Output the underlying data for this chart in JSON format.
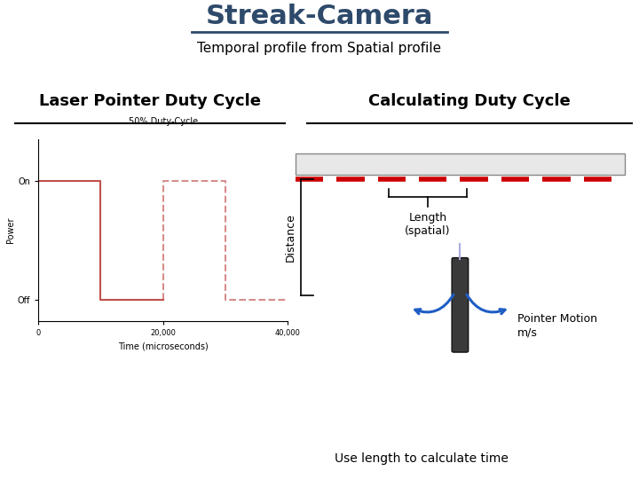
{
  "title": "Streak-Camera",
  "subtitle": "Temporal profile from Spatial profile",
  "left_section_title": "Laser Pointer Duty Cycle",
  "right_section_title": "Calculating Duty Cycle",
  "title_color": "#2E4A6B",
  "subtitle_color": "#000000",
  "section_title_color": "#000000",
  "bg_color": "#ffffff",
  "duty_cycle_label": "50% Duty-Cycle",
  "xlabel": "Time (microseconds)",
  "ylabel": "Power",
  "ytick_on": "On",
  "ytick_off": "Off",
  "xticks": [
    0,
    20000,
    40000
  ],
  "signal_color": "#c0504d",
  "wall_color": "#e8e8e8",
  "wall_outline_color": "#888888",
  "dash_color": "#cc0000",
  "distance_label": "Distance",
  "length_label": "Length\n(spatial)",
  "pointer_motion_label": "Pointer Motion\nm/s",
  "use_length_label": "Use length to calculate time",
  "arrow_color": "#1f5ec4"
}
